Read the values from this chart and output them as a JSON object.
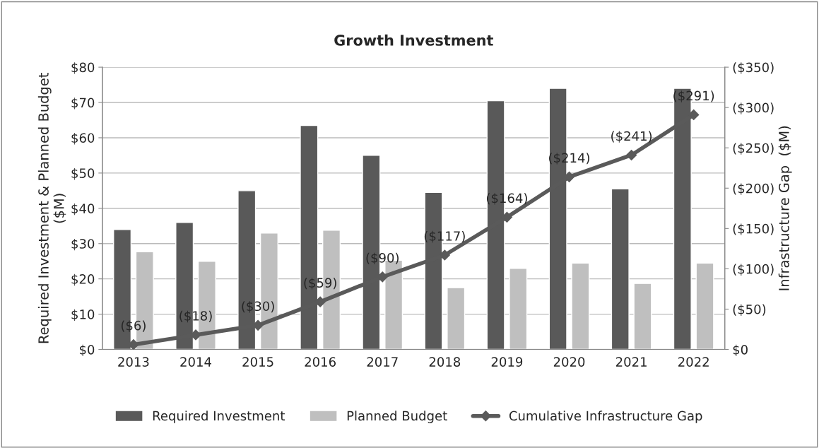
{
  "chart_data": {
    "type": "bar",
    "title": "Growth Investment",
    "categories": [
      "2013",
      "2014",
      "2015",
      "2016",
      "2017",
      "2018",
      "2019",
      "2020",
      "2021",
      "2022"
    ],
    "series": [
      {
        "name": "Required Investment",
        "color": "#595959",
        "values": [
          34,
          36,
          45,
          63.5,
          55,
          44.5,
          70.5,
          74,
          45.5,
          74
        ]
      },
      {
        "name": "Planned Budget",
        "color": "#bfbfbf",
        "values": [
          27.7,
          25,
          33,
          33.8,
          25.3,
          17.5,
          23,
          24.5,
          18.7,
          24.5
        ]
      },
      {
        "name": "Cumulative Infrastructure Gap",
        "type": "line",
        "axis": "y2",
        "color": "#5a5a5a",
        "marker": "diamond",
        "values": [
          6,
          18,
          30,
          59,
          90,
          117,
          164,
          214,
          241,
          291
        ],
        "value_labels": [
          "($6)",
          "($18)",
          "($30)",
          "($59)",
          "($90)",
          "($117)",
          "($164)",
          "($214)",
          "($241)",
          "($291)"
        ]
      }
    ],
    "ylabel": "Required Investment & Planned Budget\n($M)",
    "y2label": "Infrastructure Gap  ($M)",
    "ylim": [
      0,
      80
    ],
    "yticks": [
      {
        "value": 0,
        "label": "$0"
      },
      {
        "value": 10,
        "label": "$10"
      },
      {
        "value": 20,
        "label": "$20"
      },
      {
        "value": 30,
        "label": "$30"
      },
      {
        "value": 40,
        "label": "$40"
      },
      {
        "value": 50,
        "label": "$50"
      },
      {
        "value": 60,
        "label": "$60"
      },
      {
        "value": 70,
        "label": "$70"
      },
      {
        "value": 80,
        "label": "$80"
      }
    ],
    "y2lim": [
      0,
      350
    ],
    "y2ticks": [
      {
        "value": 0,
        "label": "$0"
      },
      {
        "value": 50,
        "label": "($50)"
      },
      {
        "value": 100,
        "label": "($100)"
      },
      {
        "value": 150,
        "label": "($150)"
      },
      {
        "value": 200,
        "label": "($200)"
      },
      {
        "value": 250,
        "label": "($250)"
      },
      {
        "value": 300,
        "label": "($300)"
      },
      {
        "value": 350,
        "label": "($350)"
      }
    ],
    "grid": "y",
    "legend": "bottom"
  }
}
